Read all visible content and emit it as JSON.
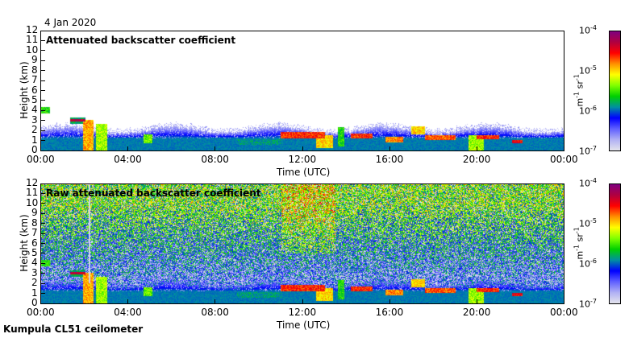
{
  "header": {
    "date": "4 Jan 2020"
  },
  "footer": {
    "label": "Kumpula CL51 ceilometer"
  },
  "colors": {
    "colormap": [
      "#e4e4ec",
      "#b0b0f4",
      "#6060ff",
      "#0000ff",
      "#0090a0",
      "#00d000",
      "#80ff00",
      "#ffff00",
      "#ff9000",
      "#ff0000",
      "#b00040",
      "#800080"
    ]
  },
  "chart_data": [
    {
      "type": "heatmap",
      "title": "Attenuated backscatter coefficient",
      "xlabel": "Time (UTC)",
      "ylabel": "Height (km)",
      "xlim": [
        0,
        24
      ],
      "ylim": [
        0,
        12
      ],
      "x_ticks": [
        "00:00",
        "04:00",
        "08:00",
        "12:00",
        "16:00",
        "20:00",
        "00:00"
      ],
      "y_ticks": [
        "0",
        "1",
        "2",
        "3",
        "4",
        "5",
        "6",
        "7",
        "8",
        "9",
        "10",
        "11",
        "12"
      ],
      "colorbar": {
        "label_base": "m",
        "label_exp1": "-1",
        "label_mid": " sr",
        "label_exp2": "-1",
        "ticks": [
          {
            "base": "10",
            "exp": "-7"
          },
          {
            "base": "10",
            "exp": "-6"
          },
          {
            "base": "10",
            "exp": "-5"
          },
          {
            "base": "10",
            "exp": "-4"
          }
        ],
        "range_log10": [
          -7,
          -4
        ]
      },
      "boundary_layer_top_km": 2.0,
      "noise_above_bl": false,
      "features": [
        {
          "t0": 0.0,
          "t1": 0.4,
          "h0": 3.7,
          "h1": 4.3,
          "log10": -5.6
        },
        {
          "t0": 1.3,
          "t1": 2.0,
          "h0": 2.6,
          "h1": 3.3,
          "log10": -5.8
        },
        {
          "t0": 1.3,
          "t1": 2.0,
          "h0": 2.9,
          "h1": 3.1,
          "log10": -4.3
        },
        {
          "t0": 1.9,
          "t1": 2.4,
          "h0": 0.0,
          "h1": 3.0,
          "log10": -4.9
        },
        {
          "t0": 2.5,
          "t1": 3.0,
          "h0": 0.0,
          "h1": 2.6,
          "log10": -5.3
        },
        {
          "t0": 4.7,
          "t1": 5.1,
          "h0": 0.7,
          "h1": 1.6,
          "log10": -5.4
        },
        {
          "t0": 9.0,
          "t1": 11.0,
          "h0": 0.5,
          "h1": 1.1,
          "log10": -5.9
        },
        {
          "t0": 11.0,
          "t1": 13.0,
          "h0": 1.2,
          "h1": 1.8,
          "log10": -4.6
        },
        {
          "t0": 12.6,
          "t1": 13.4,
          "h0": 0.2,
          "h1": 1.5,
          "log10": -5.0
        },
        {
          "t0": 13.6,
          "t1": 13.9,
          "h0": 0.4,
          "h1": 2.3,
          "log10": -5.6
        },
        {
          "t0": 14.2,
          "t1": 15.2,
          "h0": 1.2,
          "h1": 1.7,
          "log10": -4.6
        },
        {
          "t0": 15.8,
          "t1": 16.6,
          "h0": 0.8,
          "h1": 1.3,
          "log10": -4.8
        },
        {
          "t0": 17.0,
          "t1": 17.6,
          "h0": 1.6,
          "h1": 2.4,
          "log10": -5.0
        },
        {
          "t0": 17.6,
          "t1": 19.0,
          "h0": 1.0,
          "h1": 1.5,
          "log10": -4.7
        },
        {
          "t0": 19.6,
          "t1": 20.3,
          "h0": 0.0,
          "h1": 1.5,
          "log10": -5.3
        },
        {
          "t0": 20.0,
          "t1": 21.0,
          "h0": 1.1,
          "h1": 1.5,
          "log10": -4.6
        },
        {
          "t0": 21.6,
          "t1": 22.1,
          "h0": 0.7,
          "h1": 1.0,
          "log10": -4.5
        }
      ]
    },
    {
      "type": "heatmap",
      "title": "Raw attenuated backscatter coefficient",
      "xlabel": "Time (UTC)",
      "ylabel": "Height (km)",
      "xlim": [
        0,
        24
      ],
      "ylim": [
        0,
        12
      ],
      "x_ticks": [
        "00:00",
        "04:00",
        "08:00",
        "12:00",
        "16:00",
        "20:00",
        "00:00"
      ],
      "y_ticks": [
        "0",
        "1",
        "2",
        "3",
        "4",
        "5",
        "6",
        "7",
        "8",
        "9",
        "10",
        "11",
        "12"
      ],
      "colorbar": {
        "label_base": "m",
        "label_exp1": "-1",
        "label_mid": " sr",
        "label_exp2": "-1",
        "ticks": [
          {
            "base": "10",
            "exp": "-7"
          },
          {
            "base": "10",
            "exp": "-6"
          },
          {
            "base": "10",
            "exp": "-5"
          },
          {
            "base": "10",
            "exp": "-4"
          }
        ],
        "range_log10": [
          -7,
          -4
        ]
      },
      "boundary_layer_top_km": 2.0,
      "noise_above_bl": true,
      "noisy_period_hours": [
        11.0,
        13.5
      ],
      "missing_column_hour": 2.2,
      "features": "same as panel 1"
    }
  ]
}
